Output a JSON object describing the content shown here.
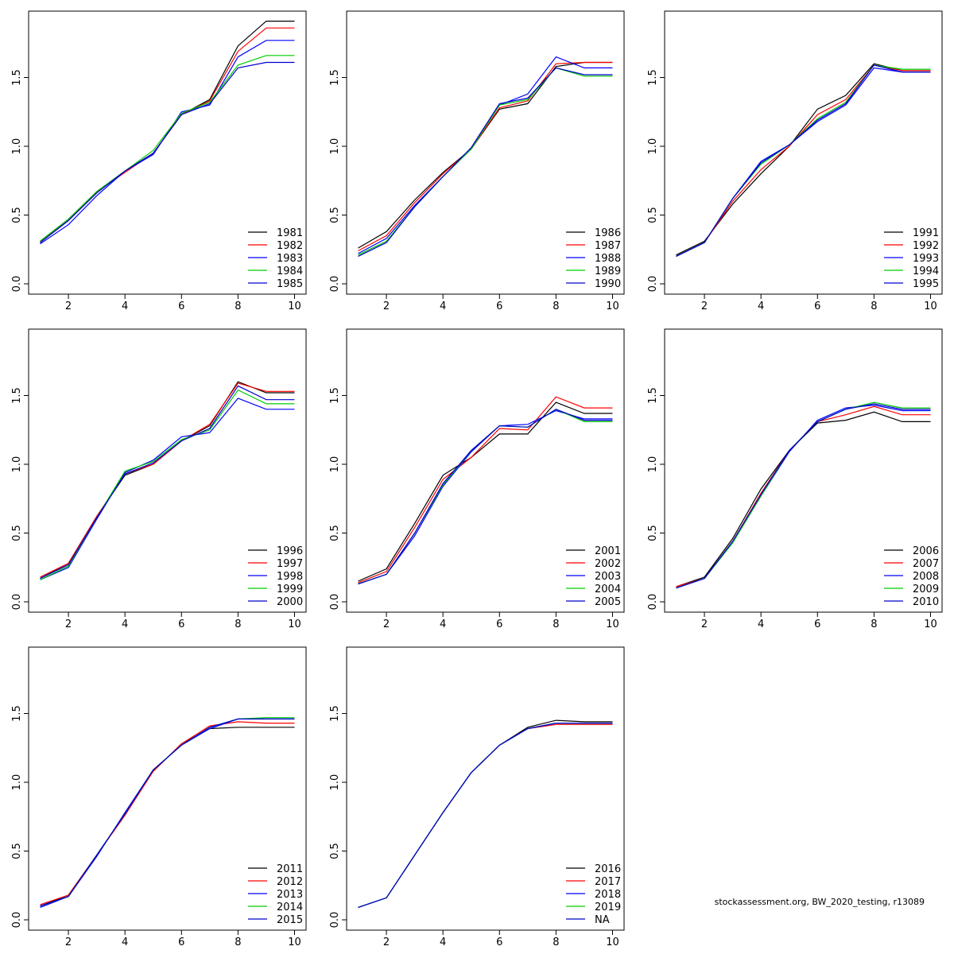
{
  "colors": {
    "series": [
      "#000000",
      "#ff0000",
      "#0000ff",
      "#00cc00",
      "#0000cc"
    ],
    "frame": "#000000",
    "background": "#ffffff"
  },
  "footer": {
    "credit": "stockassessment.org, BW_2020_testing, r13089"
  },
  "chart_data": [
    {
      "type": "line",
      "title": "",
      "xlabel": "",
      "ylabel": "",
      "xlim": [
        1,
        10
      ],
      "ylim": [
        0,
        2
      ],
      "xticks": [
        "2",
        "4",
        "6",
        "8",
        "10"
      ],
      "yticks": [
        "0.0",
        "0.5",
        "1.0",
        "1.5"
      ],
      "legend_position": "bottom-right",
      "x": [
        1,
        2,
        3,
        4,
        5,
        6,
        7,
        8,
        9,
        10
      ],
      "series": [
        {
          "name": "1981",
          "values": [
            0.31,
            0.47,
            0.67,
            0.82,
            0.95,
            1.23,
            1.34,
            1.73,
            1.91,
            1.91
          ]
        },
        {
          "name": "1982",
          "values": [
            0.3,
            0.46,
            0.67,
            0.81,
            0.95,
            1.23,
            1.33,
            1.69,
            1.86,
            1.86
          ]
        },
        {
          "name": "1983",
          "values": [
            0.29,
            0.43,
            0.64,
            0.82,
            0.94,
            1.25,
            1.3,
            1.65,
            1.77,
            1.77
          ]
        },
        {
          "name": "1984",
          "values": [
            0.31,
            0.47,
            0.67,
            0.82,
            0.97,
            1.24,
            1.32,
            1.59,
            1.66,
            1.66
          ]
        },
        {
          "name": "1985",
          "values": [
            0.3,
            0.46,
            0.66,
            0.82,
            0.95,
            1.23,
            1.31,
            1.57,
            1.61,
            1.61
          ]
        }
      ]
    },
    {
      "type": "line",
      "title": "",
      "xlabel": "",
      "ylabel": "",
      "xlim": [
        1,
        10
      ],
      "ylim": [
        0,
        2
      ],
      "xticks": [
        "2",
        "4",
        "6",
        "8",
        "10"
      ],
      "yticks": [
        "0.0",
        "0.5",
        "1.0",
        "1.5"
      ],
      "legend_position": "bottom-right",
      "x": [
        1,
        2,
        3,
        4,
        5,
        6,
        7,
        8,
        9,
        10
      ],
      "series": [
        {
          "name": "1986",
          "values": [
            0.26,
            0.38,
            0.61,
            0.81,
            0.98,
            1.27,
            1.31,
            1.58,
            1.61,
            1.61
          ]
        },
        {
          "name": "1987",
          "values": [
            0.24,
            0.35,
            0.59,
            0.8,
            0.98,
            1.28,
            1.33,
            1.6,
            1.61,
            1.61
          ]
        },
        {
          "name": "1988",
          "values": [
            0.22,
            0.33,
            0.57,
            0.78,
            0.98,
            1.3,
            1.38,
            1.65,
            1.57,
            1.57
          ]
        },
        {
          "name": "1989",
          "values": [
            0.21,
            0.31,
            0.56,
            0.78,
            0.98,
            1.3,
            1.34,
            1.57,
            1.51,
            1.51
          ]
        },
        {
          "name": "1990",
          "values": [
            0.2,
            0.3,
            0.56,
            0.78,
            0.99,
            1.31,
            1.35,
            1.57,
            1.52,
            1.52
          ]
        }
      ]
    },
    {
      "type": "line",
      "title": "",
      "xlabel": "",
      "ylabel": "",
      "xlim": [
        1,
        10
      ],
      "ylim": [
        0,
        2
      ],
      "xticks": [
        "2",
        "4",
        "6",
        "8",
        "10"
      ],
      "yticks": [
        "0.0",
        "0.5",
        "1.0",
        "1.5"
      ],
      "legend_position": "bottom-right",
      "x": [
        1,
        2,
        3,
        4,
        5,
        6,
        7,
        8,
        9,
        10
      ],
      "series": [
        {
          "name": "1991",
          "values": [
            0.21,
            0.31,
            0.58,
            0.8,
            1.0,
            1.27,
            1.37,
            1.6,
            1.55,
            1.55
          ]
        },
        {
          "name": "1992",
          "values": [
            0.2,
            0.3,
            0.6,
            0.83,
            1.0,
            1.23,
            1.34,
            1.59,
            1.55,
            1.55
          ]
        },
        {
          "name": "1993",
          "values": [
            0.2,
            0.3,
            0.62,
            0.89,
            1.01,
            1.18,
            1.3,
            1.57,
            1.54,
            1.54
          ]
        },
        {
          "name": "1994",
          "values": [
            0.2,
            0.3,
            0.62,
            0.87,
            1.01,
            1.2,
            1.32,
            1.59,
            1.56,
            1.56
          ]
        },
        {
          "name": "1995",
          "values": [
            0.2,
            0.3,
            0.62,
            0.88,
            1.01,
            1.19,
            1.31,
            1.59,
            1.54,
            1.54
          ]
        }
      ]
    },
    {
      "type": "line",
      "title": "",
      "xlabel": "",
      "ylabel": "",
      "xlim": [
        1,
        10
      ],
      "ylim": [
        0,
        2
      ],
      "xticks": [
        "2",
        "4",
        "6",
        "8",
        "10"
      ],
      "yticks": [
        "0.0",
        "0.5",
        "1.0",
        "1.5"
      ],
      "legend_position": "bottom-right",
      "x": [
        1,
        2,
        3,
        4,
        5,
        6,
        7,
        8,
        9,
        10
      ],
      "series": [
        {
          "name": "1996",
          "values": [
            0.17,
            0.28,
            0.62,
            0.92,
            1.0,
            1.17,
            1.28,
            1.6,
            1.52,
            1.52
          ]
        },
        {
          "name": "1997",
          "values": [
            0.18,
            0.28,
            0.62,
            0.93,
            1.0,
            1.17,
            1.29,
            1.59,
            1.53,
            1.53
          ]
        },
        {
          "name": "1998",
          "values": [
            0.16,
            0.25,
            0.6,
            0.94,
            1.03,
            1.2,
            1.23,
            1.48,
            1.4,
            1.4
          ]
        },
        {
          "name": "1999",
          "values": [
            0.16,
            0.26,
            0.61,
            0.95,
            1.02,
            1.18,
            1.25,
            1.54,
            1.44,
            1.44
          ]
        },
        {
          "name": "2000",
          "values": [
            0.17,
            0.27,
            0.61,
            0.93,
            1.01,
            1.17,
            1.26,
            1.57,
            1.47,
            1.47
          ]
        }
      ]
    },
    {
      "type": "line",
      "title": "",
      "xlabel": "",
      "ylabel": "",
      "xlim": [
        1,
        10
      ],
      "ylim": [
        0,
        2
      ],
      "xticks": [
        "2",
        "4",
        "6",
        "8",
        "10"
      ],
      "yticks": [
        "0.0",
        "0.5",
        "1.0",
        "1.5"
      ],
      "legend_position": "bottom-right",
      "x": [
        1,
        2,
        3,
        4,
        5,
        6,
        7,
        8,
        9,
        10
      ],
      "series": [
        {
          "name": "2001",
          "values": [
            0.15,
            0.24,
            0.57,
            0.92,
            1.05,
            1.22,
            1.22,
            1.45,
            1.37,
            1.37
          ]
        },
        {
          "name": "2002",
          "values": [
            0.14,
            0.22,
            0.54,
            0.89,
            1.05,
            1.26,
            1.25,
            1.49,
            1.41,
            1.41
          ]
        },
        {
          "name": "2003",
          "values": [
            0.13,
            0.2,
            0.48,
            0.84,
            1.09,
            1.28,
            1.29,
            1.39,
            1.33,
            1.33
          ]
        },
        {
          "name": "2004",
          "values": [
            0.13,
            0.2,
            0.5,
            0.85,
            1.1,
            1.28,
            1.27,
            1.4,
            1.31,
            1.31
          ]
        },
        {
          "name": "2005",
          "values": [
            0.13,
            0.2,
            0.5,
            0.86,
            1.1,
            1.28,
            1.27,
            1.4,
            1.32,
            1.32
          ]
        }
      ]
    },
    {
      "type": "line",
      "title": "",
      "xlabel": "",
      "ylabel": "",
      "xlim": [
        1,
        10
      ],
      "ylim": [
        0,
        2
      ],
      "xticks": [
        "2",
        "4",
        "6",
        "8",
        "10"
      ],
      "yticks": [
        "0.0",
        "0.5",
        "1.0",
        "1.5"
      ],
      "legend_position": "bottom-right",
      "x": [
        1,
        2,
        3,
        4,
        5,
        6,
        7,
        8,
        9,
        10
      ],
      "series": [
        {
          "name": "2006",
          "values": [
            0.11,
            0.18,
            0.46,
            0.82,
            1.1,
            1.3,
            1.32,
            1.38,
            1.31,
            1.31
          ]
        },
        {
          "name": "2007",
          "values": [
            0.11,
            0.17,
            0.44,
            0.79,
            1.1,
            1.31,
            1.36,
            1.42,
            1.36,
            1.36
          ]
        },
        {
          "name": "2008",
          "values": [
            0.1,
            0.17,
            0.43,
            0.77,
            1.09,
            1.32,
            1.41,
            1.43,
            1.39,
            1.39
          ]
        },
        {
          "name": "2009",
          "values": [
            0.1,
            0.17,
            0.43,
            0.77,
            1.1,
            1.31,
            1.4,
            1.45,
            1.41,
            1.41
          ]
        },
        {
          "name": "2010",
          "values": [
            0.1,
            0.17,
            0.44,
            0.78,
            1.1,
            1.31,
            1.4,
            1.44,
            1.4,
            1.4
          ]
        }
      ]
    },
    {
      "type": "line",
      "title": "",
      "xlabel": "",
      "ylabel": "",
      "xlim": [
        1,
        10
      ],
      "ylim": [
        0,
        2
      ],
      "xticks": [
        "2",
        "4",
        "6",
        "8",
        "10"
      ],
      "yticks": [
        "0.0",
        "0.5",
        "1.0",
        "1.5"
      ],
      "legend_position": "bottom-right",
      "x": [
        1,
        2,
        3,
        4,
        5,
        6,
        7,
        8,
        9,
        10
      ],
      "series": [
        {
          "name": "2011",
          "values": [
            0.1,
            0.18,
            0.47,
            0.77,
            1.08,
            1.28,
            1.39,
            1.4,
            1.4,
            1.4
          ]
        },
        {
          "name": "2012",
          "values": [
            0.11,
            0.18,
            0.47,
            0.76,
            1.08,
            1.28,
            1.41,
            1.44,
            1.43,
            1.43
          ]
        },
        {
          "name": "2013",
          "values": [
            0.09,
            0.17,
            0.46,
            0.78,
            1.09,
            1.27,
            1.39,
            1.46,
            1.46,
            1.46
          ]
        },
        {
          "name": "2014",
          "values": [
            0.1,
            0.17,
            0.47,
            0.77,
            1.09,
            1.27,
            1.4,
            1.46,
            1.47,
            1.47
          ]
        },
        {
          "name": "2015",
          "values": [
            0.1,
            0.17,
            0.47,
            0.77,
            1.09,
            1.27,
            1.4,
            1.46,
            1.46,
            1.46
          ]
        }
      ]
    },
    {
      "type": "line",
      "title": "",
      "xlabel": "",
      "ylabel": "",
      "xlim": [
        1,
        10
      ],
      "ylim": [
        0,
        2
      ],
      "xticks": [
        "2",
        "4",
        "6",
        "8",
        "10"
      ],
      "yticks": [
        "0.0",
        "0.5",
        "1.0",
        "1.5"
      ],
      "legend_position": "bottom-right",
      "x": [
        1,
        2,
        3,
        4,
        5,
        6,
        7,
        8,
        9,
        10
      ],
      "series": [
        {
          "name": "2016",
          "values": [
            0.09,
            0.16,
            0.47,
            0.78,
            1.07,
            1.27,
            1.4,
            1.45,
            1.44,
            1.44
          ]
        },
        {
          "name": "2017",
          "values": [
            0.09,
            0.16,
            0.47,
            0.78,
            1.07,
            1.27,
            1.39,
            1.42,
            1.42,
            1.42
          ]
        },
        {
          "name": "2018",
          "values": [
            0.09,
            0.16,
            0.47,
            0.78,
            1.07,
            1.27,
            1.39,
            1.43,
            1.43,
            1.43
          ]
        },
        {
          "name": "2019",
          "values": [
            0.09,
            0.16,
            0.47,
            0.78,
            1.07,
            1.27,
            1.39,
            1.43,
            1.43,
            1.43
          ]
        },
        {
          "name": "NA",
          "values": [
            0.09,
            0.16,
            0.47,
            0.78,
            1.07,
            1.27,
            1.39,
            1.43,
            1.43,
            1.43
          ]
        }
      ]
    }
  ]
}
